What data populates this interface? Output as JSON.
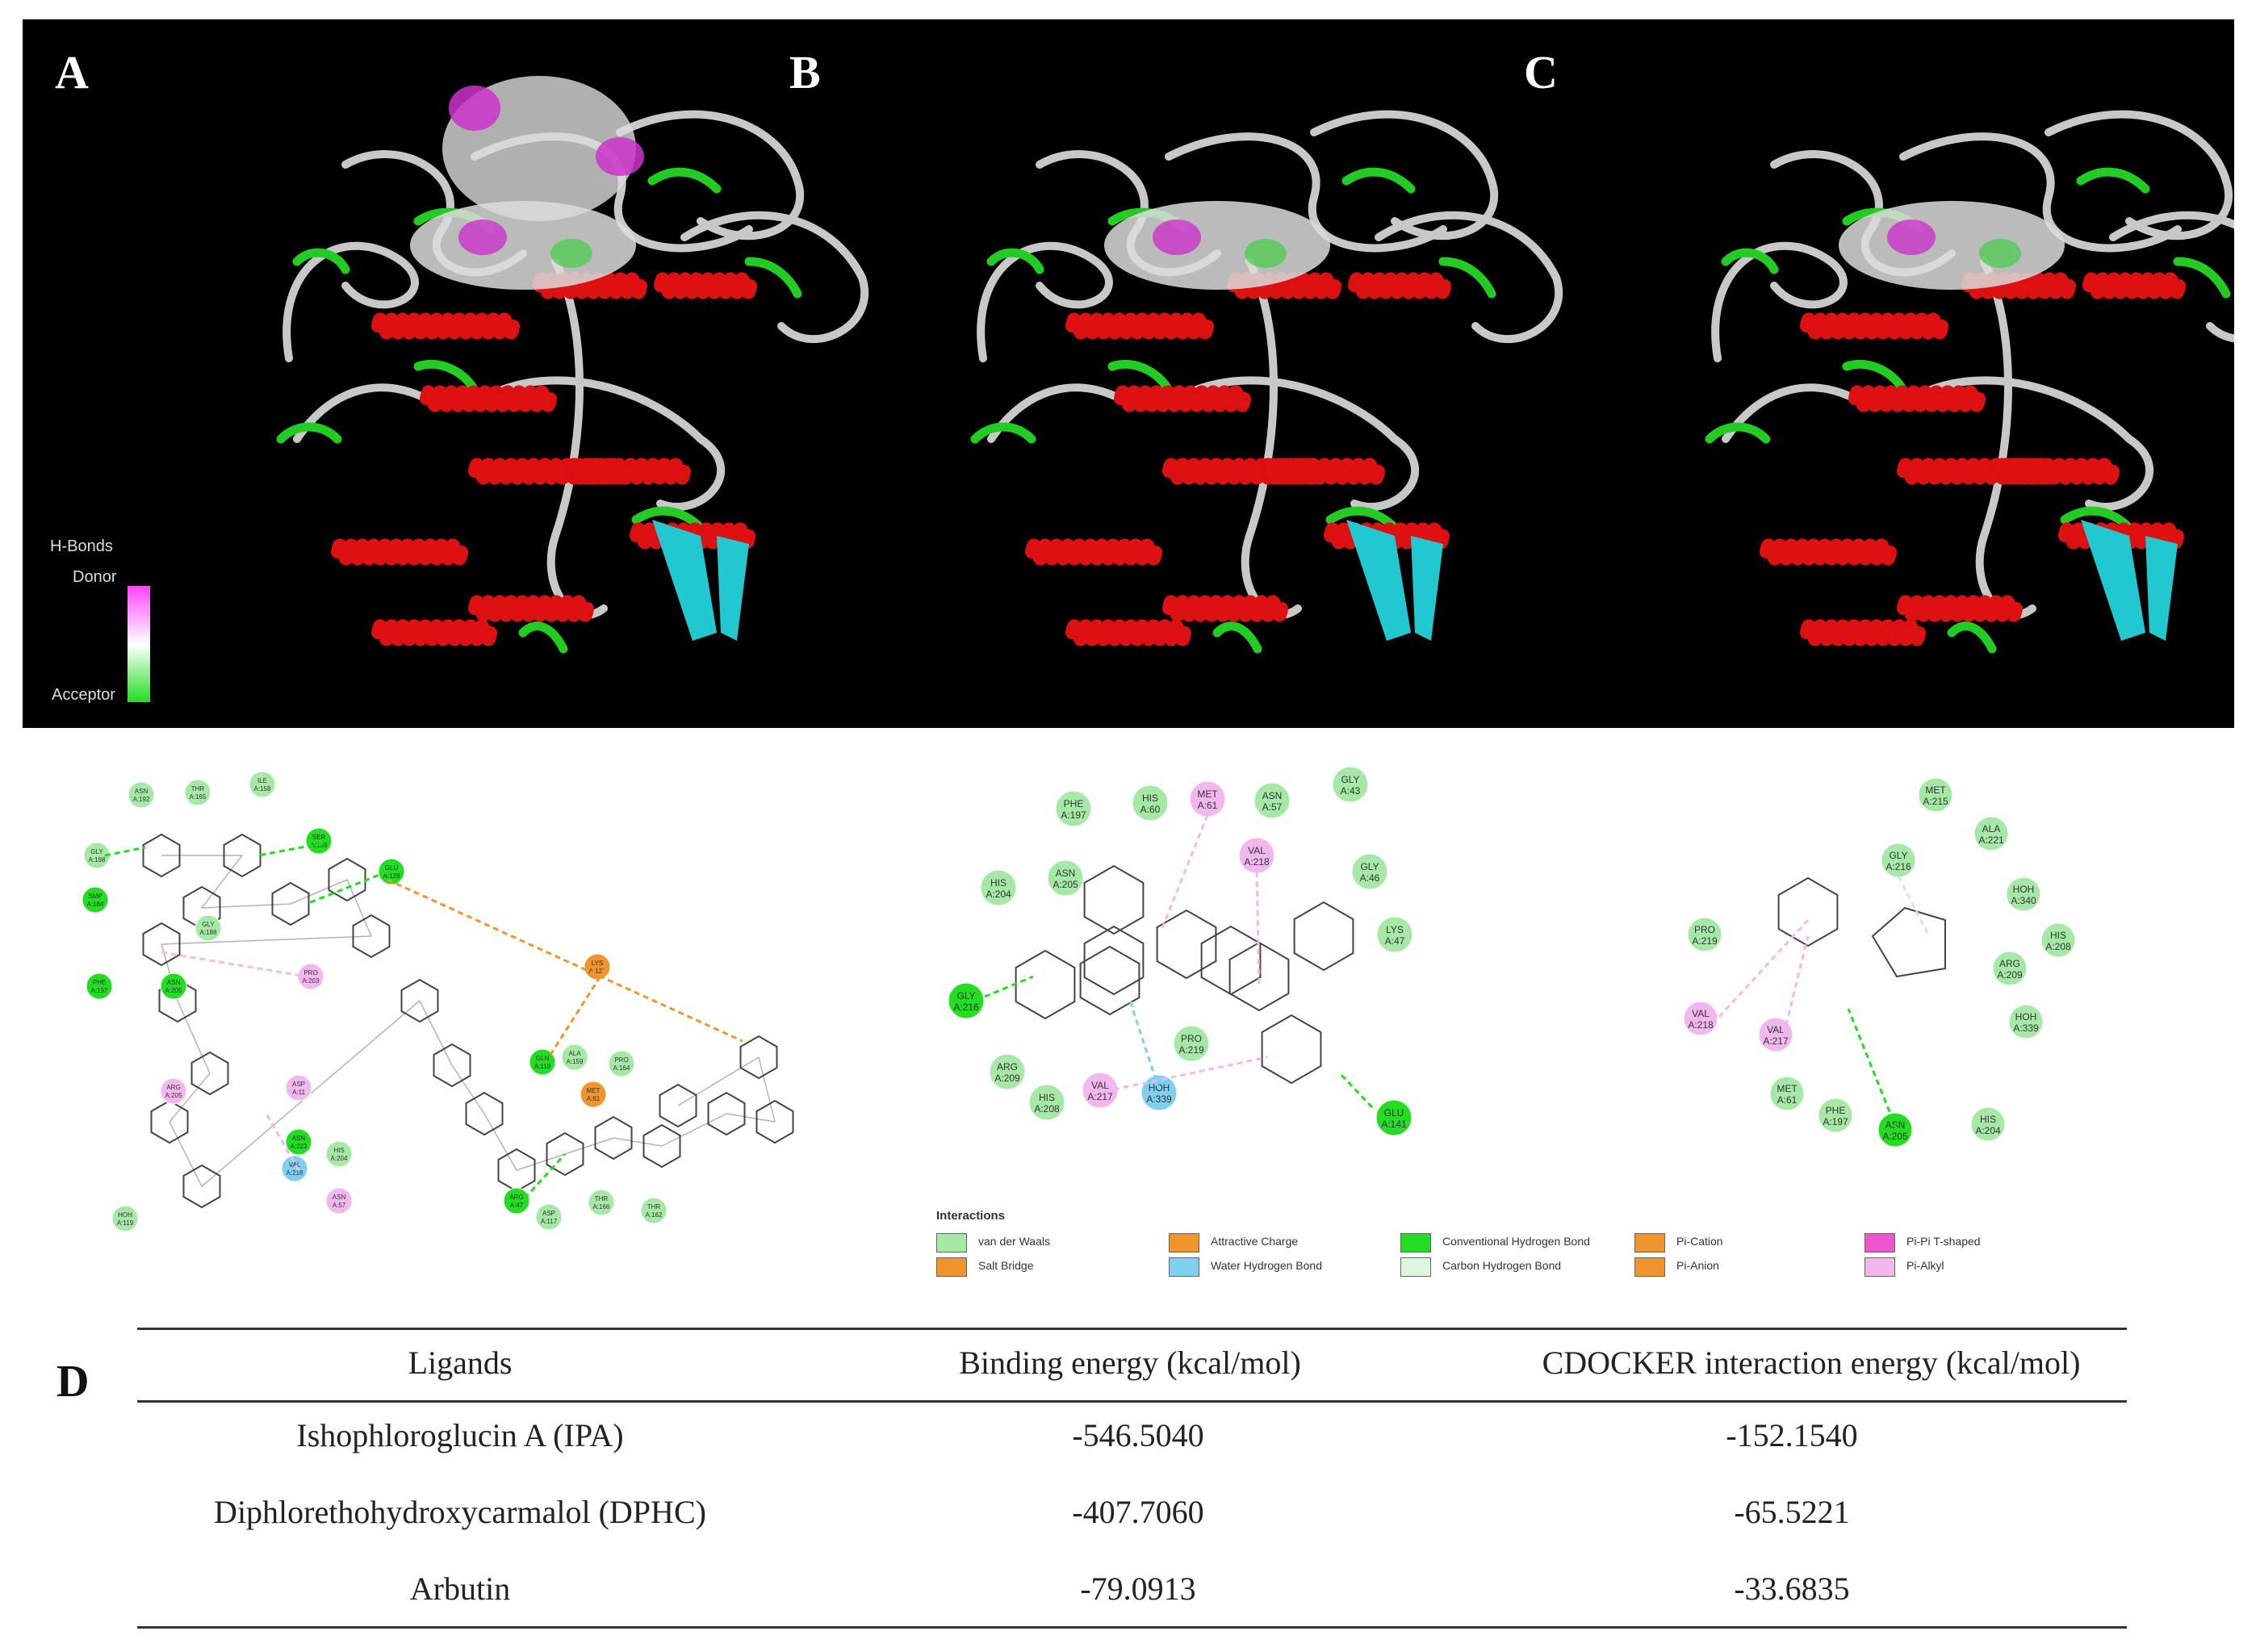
{
  "panels": {
    "a": "A",
    "b": "B",
    "c": "C",
    "d": "D"
  },
  "hbond_scale": {
    "title": "H-Bonds",
    "top": "Donor",
    "bottom": "Acceptor",
    "colors": [
      "#ff44ff",
      "#ffffff",
      "#22dd22"
    ]
  },
  "residues": {
    "ipa": [
      "ASN A:192",
      "THR A:165",
      "ILE A:158",
      "GLY A:198",
      "SER A:159",
      "GLU A:128",
      "SMP A:184",
      "GLY A:188",
      "PRO A:203",
      "LYS A:127",
      "PHE A:197",
      "ASN A:205",
      "GLN A:119",
      "ALA A:159",
      "PRO A:164",
      "ARG A:205",
      "MET A:61",
      "ASP A:11",
      "ASN A:223",
      "HIS A:204",
      "HOH A:119",
      "VAL A:218",
      "ASN A:57",
      "ARG A:47",
      "ASP A:117",
      "THR A:166",
      "THR A:162"
    ],
    "dphc": [
      "PHE A:197",
      "HIS A:60",
      "MET A:61",
      "ASN A:57",
      "GLY A:43",
      "VAL A:218",
      "HIS A:204",
      "ASN A:205",
      "GLY A:46",
      "LYS A:47",
      "GLY A:216",
      "ARG A:209",
      "PRO A:219",
      "HIS A:208",
      "VAL A:217",
      "HOH A:339",
      "GLU A:141"
    ],
    "arbutin": [
      "MET A:215",
      "ALA A:221",
      "GLY A:216",
      "HOH A:340",
      "PRO A:219",
      "HIS A:208",
      "ARG A:209",
      "VAL A:218",
      "VAL A:217",
      "HOH A:339",
      "MET A:61",
      "PHE A:197",
      "ASN A:205",
      "HIS A:204"
    ]
  },
  "legend": {
    "title": "Interactions",
    "items": [
      {
        "label": "van der Waals",
        "color": "#a6e8a6"
      },
      {
        "label": "Salt Bridge",
        "color": "#f0952e"
      },
      {
        "label": "Attractive Charge",
        "color": "#f0952e"
      },
      {
        "label": "Water Hydrogen Bond",
        "color": "#7fd0f0"
      },
      {
        "label": "Conventional Hydrogen Bond",
        "color": "#22dd22"
      },
      {
        "label": "Carbon Hydrogen Bond",
        "color": "#dff5df"
      },
      {
        "label": "Pi-Cation",
        "color": "#f0952e"
      },
      {
        "label": "Pi-Anion",
        "color": "#f0952e"
      },
      {
        "label": "Pi-Pi T-shaped",
        "color": "#ee55cc"
      },
      {
        "label": "Pi-Alkyl",
        "color": "#f2b8ee"
      }
    ]
  },
  "table": {
    "headers": [
      "Ligands",
      "Binding energy (kcal/mol)",
      "CDOCKER interaction energy (kcal/mol)"
    ],
    "rows": [
      [
        "Ishophloroglucin A (IPA)",
        "-546.5040",
        "-152.1540"
      ],
      [
        "Diphlorethohydroxycarmalol (DPHC)",
        "-407.7060",
        "-65.5221"
      ],
      [
        "Arbutin",
        "-79.0913",
        "-33.6835"
      ]
    ]
  },
  "colors": {
    "helix": "#dd1111",
    "coil": "#c8c8c8",
    "turn": "#22cc22",
    "sheet": "#22c8d0",
    "vdw": "#a6e8a6",
    "conventional_hbond": "#22dd22",
    "pi_alkyl": "#f2b8ee",
    "water": "#7fd0f0",
    "charge": "#f0952e"
  }
}
